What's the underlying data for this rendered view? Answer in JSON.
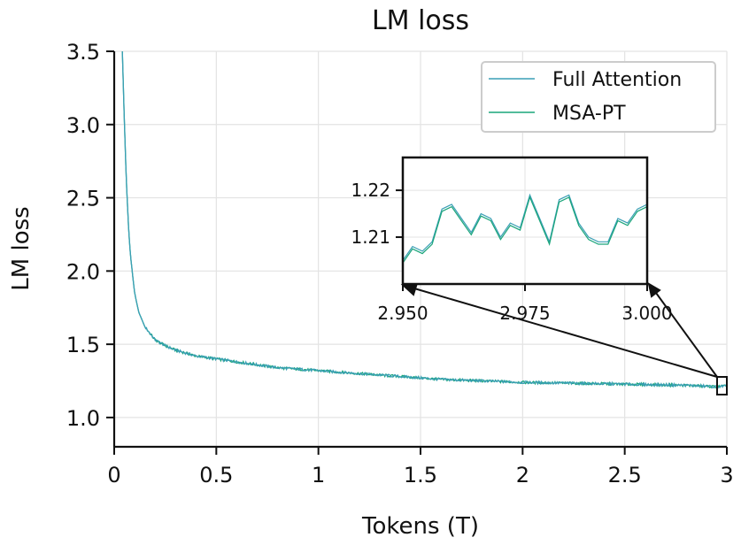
{
  "chart_data": {
    "type": "line",
    "title": "LM loss",
    "xlabel": "Tokens (T)",
    "ylabel": "LM loss",
    "xlim": [
      0,
      3
    ],
    "ylim": [
      0.8,
      3.5
    ],
    "xticks": [
      "0",
      "0.5",
      "1",
      "1.5",
      "2",
      "2.5",
      "3"
    ],
    "yticks": [
      "1.0",
      "1.5",
      "2.0",
      "2.5",
      "3.0",
      "3.5"
    ],
    "grid": true,
    "legend": {
      "placement": "top-right"
    },
    "series": [
      {
        "name": "Full Attention",
        "color": "#3a9fb5",
        "x": [
          0.04,
          0.05,
          0.06,
          0.07,
          0.08,
          0.1,
          0.12,
          0.15,
          0.2,
          0.25,
          0.3,
          0.4,
          0.5,
          0.6,
          0.7,
          0.8,
          0.9,
          1.0,
          1.2,
          1.4,
          1.6,
          1.8,
          2.0,
          2.2,
          2.4,
          2.6,
          2.8,
          2.95,
          3.0
        ],
        "y": [
          3.5,
          3.0,
          2.6,
          2.3,
          2.1,
          1.85,
          1.72,
          1.62,
          1.53,
          1.49,
          1.46,
          1.42,
          1.4,
          1.38,
          1.36,
          1.34,
          1.33,
          1.32,
          1.3,
          1.28,
          1.26,
          1.25,
          1.24,
          1.235,
          1.23,
          1.225,
          1.22,
          1.21,
          1.215
        ]
      },
      {
        "name": "MSA-PT",
        "color": "#1aa57a",
        "x": [
          0.04,
          0.05,
          0.06,
          0.07,
          0.08,
          0.1,
          0.12,
          0.15,
          0.2,
          0.25,
          0.3,
          0.4,
          0.5,
          0.6,
          0.7,
          0.8,
          0.9,
          1.0,
          1.2,
          1.4,
          1.6,
          1.8,
          2.0,
          2.2,
          2.4,
          2.6,
          2.8,
          2.95,
          3.0
        ],
        "y": [
          3.5,
          3.0,
          2.6,
          2.3,
          2.1,
          1.85,
          1.72,
          1.62,
          1.53,
          1.49,
          1.46,
          1.42,
          1.4,
          1.38,
          1.36,
          1.34,
          1.33,
          1.32,
          1.3,
          1.28,
          1.26,
          1.25,
          1.24,
          1.235,
          1.23,
          1.225,
          1.22,
          1.21,
          1.215
        ]
      }
    ],
    "inset": {
      "xlim": [
        2.95,
        3.0
      ],
      "ylim": [
        1.2,
        1.227
      ],
      "xticks": [
        "2.950",
        "2.975",
        "3.000"
      ],
      "yticks": [
        "1.21",
        "1.22"
      ],
      "series": [
        {
          "name": "Full Attention",
          "x": [
            2.95,
            2.952,
            2.954,
            2.956,
            2.958,
            2.96,
            2.962,
            2.964,
            2.966,
            2.968,
            2.97,
            2.972,
            2.974,
            2.976,
            2.978,
            2.98,
            2.982,
            2.984,
            2.986,
            2.988,
            2.99,
            2.992,
            2.994,
            2.996,
            2.998,
            3.0
          ],
          "y": [
            1.205,
            1.208,
            1.207,
            1.209,
            1.216,
            1.217,
            1.214,
            1.211,
            1.215,
            1.214,
            1.21,
            1.213,
            1.212,
            1.219,
            1.214,
            1.209,
            1.218,
            1.219,
            1.213,
            1.21,
            1.209,
            1.209,
            1.214,
            1.213,
            1.216,
            1.217
          ]
        },
        {
          "name": "MSA-PT",
          "x": [
            2.95,
            2.952,
            2.954,
            2.956,
            2.958,
            2.96,
            2.962,
            2.964,
            2.966,
            2.968,
            2.97,
            2.972,
            2.974,
            2.976,
            2.978,
            2.98,
            2.982,
            2.984,
            2.986,
            2.988,
            2.99,
            2.992,
            2.994,
            2.996,
            2.998,
            3.0
          ],
          "y": [
            1.2045,
            1.2075,
            1.2065,
            1.2085,
            1.2155,
            1.2165,
            1.2135,
            1.2105,
            1.2145,
            1.2135,
            1.2095,
            1.2125,
            1.2115,
            1.2185,
            1.2135,
            1.2085,
            1.2175,
            1.2185,
            1.2125,
            1.2095,
            1.2085,
            1.2085,
            1.2135,
            1.2125,
            1.2155,
            1.2165
          ]
        }
      ]
    }
  }
}
